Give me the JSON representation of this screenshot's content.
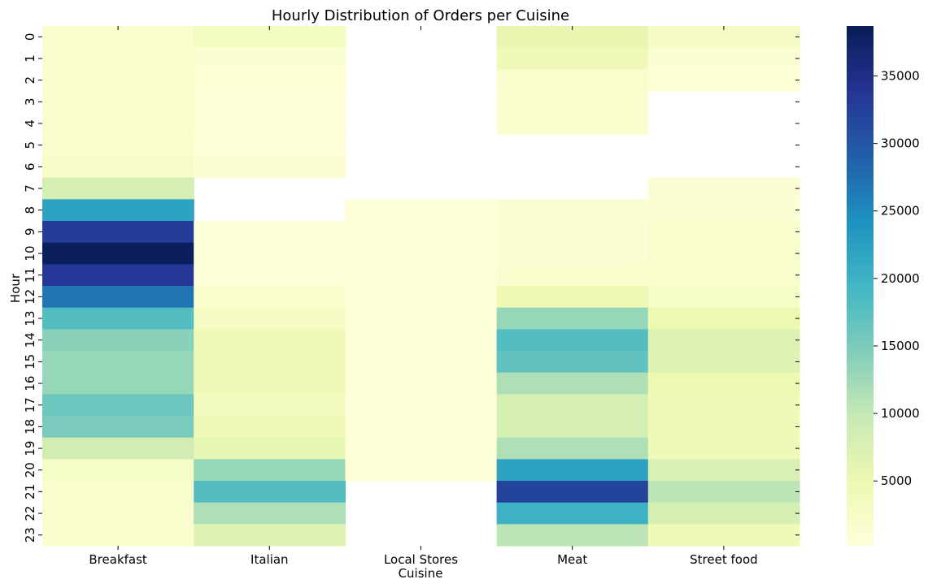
{
  "chart_data": {
    "type": "heatmap",
    "title": "Hourly Distribution of Orders per Cuisine",
    "xlabel": "Cuisine",
    "ylabel": "Hour",
    "categories": [
      "Breakfast",
      "Italian",
      "Local Stores",
      "Meat",
      "Street food"
    ],
    "rows": [
      "0",
      "1",
      "2",
      "3",
      "4",
      "5",
      "6",
      "7",
      "8",
      "9",
      "10",
      "11",
      "12",
      "13",
      "14",
      "15",
      "16",
      "17",
      "18",
      "19",
      "20",
      "21",
      "22",
      "23"
    ],
    "values": [
      [
        1500,
        3200,
        null,
        5500,
        2800
      ],
      [
        1500,
        1200,
        null,
        4000,
        1000
      ],
      [
        1500,
        800,
        null,
        1800,
        800
      ],
      [
        1500,
        600,
        null,
        1500,
        null
      ],
      [
        1500,
        600,
        null,
        1400,
        null
      ],
      [
        1700,
        700,
        null,
        null,
        null
      ],
      [
        2000,
        1000,
        null,
        null,
        null
      ],
      [
        8000,
        null,
        null,
        null,
        1000
      ],
      [
        22000,
        null,
        500,
        1200,
        1200
      ],
      [
        33000,
        500,
        500,
        1200,
        1800
      ],
      [
        38500,
        500,
        500,
        1200,
        1800
      ],
      [
        33500,
        500,
        500,
        1600,
        1800
      ],
      [
        27000,
        1500,
        500,
        4500,
        2500
      ],
      [
        18000,
        3000,
        500,
        13000,
        5000
      ],
      [
        14000,
        4000,
        500,
        18000,
        7000
      ],
      [
        13000,
        4000,
        500,
        17000,
        6500
      ],
      [
        13000,
        4000,
        500,
        11500,
        5000
      ],
      [
        16000,
        3500,
        500,
        8000,
        4000
      ],
      [
        15000,
        4000,
        500,
        8000,
        4000
      ],
      [
        8500,
        6000,
        500,
        11500,
        4000
      ],
      [
        2500,
        13000,
        500,
        22000,
        7500
      ],
      [
        1700,
        18000,
        null,
        32000,
        10500
      ],
      [
        1700,
        11500,
        null,
        20000,
        8000
      ],
      [
        1400,
        6500,
        null,
        10500,
        4000
      ]
    ],
    "colorbar": {
      "min": 200,
      "max": 38700,
      "ticks": [
        5000,
        10000,
        15000,
        20000,
        25000,
        30000,
        35000
      ],
      "tick_labels": [
        "5000",
        "10000",
        "15000",
        "20000",
        "25000",
        "30000",
        "35000"
      ]
    },
    "colormap": {
      "name": "YlGnBu",
      "stops": [
        "#ffffd9",
        "#edf8b1",
        "#c7e9b4",
        "#7fcdbb",
        "#41b6c4",
        "#1d91c0",
        "#225ea8",
        "#253494",
        "#081d58"
      ]
    }
  }
}
